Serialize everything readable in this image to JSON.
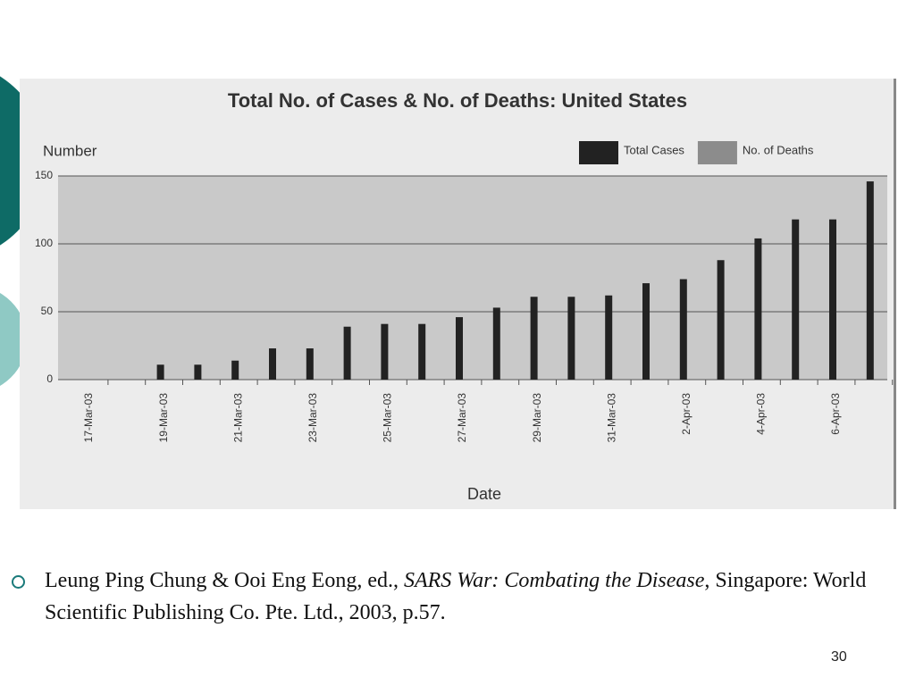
{
  "chart_data": {
    "type": "bar",
    "title": "Total No. of Cases & No. of Deaths: United States",
    "y_label": "Number",
    "x_label": "Date",
    "categories": [
      "17-Mar-03",
      null,
      "19-Mar-03",
      null,
      "21-Mar-03",
      null,
      "23-Mar-03",
      null,
      "25-Mar-03",
      null,
      "27-Mar-03",
      null,
      "29-Mar-03",
      null,
      "31-Mar-03",
      null,
      "2-Apr-03",
      null,
      "4-Apr-03",
      null,
      "6-Apr-03",
      null
    ],
    "series": [
      {
        "name": "Total Cases",
        "color": "#222222",
        "values": [
          0,
          0,
          11,
          11,
          14,
          23,
          23,
          39,
          41,
          41,
          46,
          53,
          61,
          61,
          62,
          71,
          74,
          88,
          104,
          118,
          118,
          146
        ]
      },
      {
        "name": "No. of Deaths",
        "color": "#8c8c8c",
        "values": [
          0,
          0,
          0,
          0,
          0,
          0,
          0,
          0,
          0,
          0,
          0,
          0,
          0,
          0,
          0,
          0,
          0,
          0,
          0,
          0,
          0,
          0
        ]
      }
    ],
    "ylim": [
      0,
      150
    ],
    "yticks": [
      0,
      50,
      100,
      150
    ],
    "grid": true,
    "legend": "top-right"
  },
  "citation": {
    "before": "Leung Ping Chung & Ooi Eng Eong, ed., ",
    "title": "SARS War: Combating the Disease",
    "after": ", Singapore: World Scientific Publishing Co. Pte. Ltd., 2003, p.57."
  },
  "page_number": "30"
}
